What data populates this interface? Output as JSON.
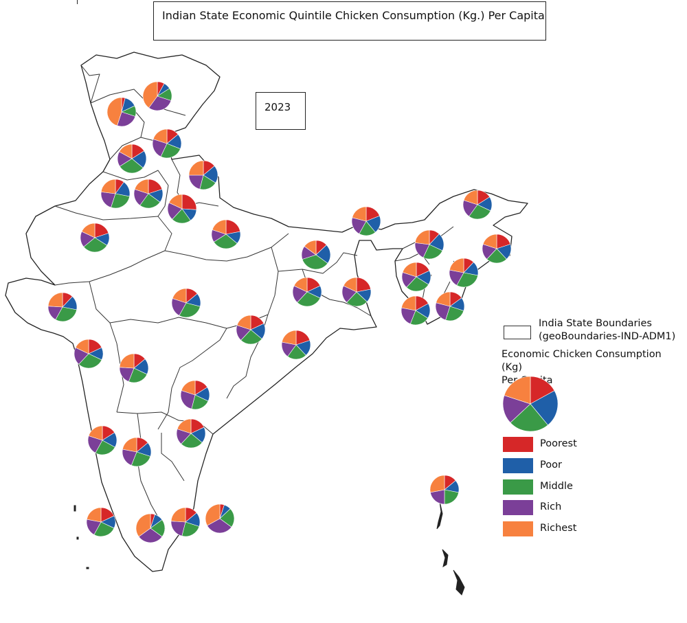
{
  "title": "Indian State Economic Quintile Chicken Consumption (Kg.) Per Capita",
  "year": "2023",
  "legend": {
    "boundary_label_line1": "India State Boundaries",
    "boundary_label_line2": "(geoBoundaries-IND-ADM1)",
    "size_title_line1": "Economic Chicken Consumption (Kg)",
    "size_title_line2": "Per Capita",
    "quintiles": [
      {
        "label": "Poorest",
        "color": "#d62728"
      },
      {
        "label": "Poor",
        "color": "#1f5fa8"
      },
      {
        "label": "Middle",
        "color": "#3a9a47"
      },
      {
        "label": "Rich",
        "color": "#7b3f98"
      },
      {
        "label": "Richest",
        "color": "#f7813f"
      }
    ]
  },
  "legend_pie_shares": [
    0.17,
    0.22,
    0.24,
    0.17,
    0.2
  ],
  "state_pies": [
    {
      "shares": [
        0.08,
        0.08,
        0.14,
        0.3,
        0.4
      ]
    },
    {
      "shares": [
        0.04,
        0.14,
        0.12,
        0.25,
        0.45
      ]
    },
    {
      "shares": [
        0.14,
        0.17,
        0.26,
        0.23,
        0.2
      ]
    },
    {
      "shares": [
        0.16,
        0.2,
        0.3,
        0.17,
        0.17
      ]
    },
    {
      "shares": [
        0.14,
        0.2,
        0.2,
        0.21,
        0.25
      ]
    },
    {
      "shares": [
        0.1,
        0.18,
        0.27,
        0.22,
        0.23
      ]
    },
    {
      "shares": [
        0.2,
        0.15,
        0.25,
        0.2,
        0.2
      ]
    },
    {
      "shares": [
        0.26,
        0.14,
        0.22,
        0.2,
        0.18
      ]
    },
    {
      "shares": [
        0.2,
        0.14,
        0.3,
        0.18,
        0.18
      ]
    },
    {
      "shares": [
        0.22,
        0.14,
        0.3,
        0.14,
        0.2
      ]
    },
    {
      "shares": [
        0.19,
        0.2,
        0.19,
        0.21,
        0.21
      ]
    },
    {
      "shares": [
        0.13,
        0.22,
        0.35,
        0.15,
        0.15
      ]
    },
    {
      "shares": [
        0.12,
        0.2,
        0.25,
        0.2,
        0.23
      ]
    },
    {
      "shares": [
        0.16,
        0.16,
        0.28,
        0.2,
        0.2
      ]
    },
    {
      "shares": [
        0.2,
        0.18,
        0.24,
        0.18,
        0.2
      ]
    },
    {
      "shares": [
        0.18,
        0.14,
        0.3,
        0.2,
        0.18
      ]
    },
    {
      "shares": [
        0.22,
        0.15,
        0.25,
        0.2,
        0.18
      ]
    },
    {
      "shares": [
        0.18,
        0.16,
        0.28,
        0.18,
        0.2
      ]
    },
    {
      "shares": [
        0.12,
        0.16,
        0.3,
        0.2,
        0.22
      ]
    },
    {
      "shares": [
        0.17,
        0.17,
        0.22,
        0.22,
        0.22
      ]
    },
    {
      "shares": [
        0.15,
        0.15,
        0.25,
        0.24,
        0.21
      ]
    },
    {
      "shares": [
        0.12,
        0.16,
        0.3,
        0.18,
        0.24
      ]
    },
    {
      "shares": [
        0.14,
        0.15,
        0.29,
        0.22,
        0.2
      ]
    },
    {
      "shares": [
        0.18,
        0.18,
        0.26,
        0.18,
        0.2
      ]
    },
    {
      "shares": [
        0.2,
        0.18,
        0.22,
        0.18,
        0.22
      ]
    },
    {
      "shares": [
        0.18,
        0.14,
        0.3,
        0.2,
        0.18
      ]
    },
    {
      "shares": [
        0.14,
        0.18,
        0.24,
        0.2,
        0.24
      ]
    },
    {
      "shares": [
        0.16,
        0.16,
        0.22,
        0.26,
        0.2
      ]
    },
    {
      "shares": [
        0.18,
        0.18,
        0.26,
        0.18,
        0.2
      ]
    },
    {
      "shares": [
        0.16,
        0.17,
        0.25,
        0.22,
        0.2
      ]
    },
    {
      "shares": [
        0.14,
        0.16,
        0.26,
        0.22,
        0.22
      ]
    },
    {
      "shares": [
        0.18,
        0.14,
        0.26,
        0.2,
        0.22
      ]
    },
    {
      "shares": [
        0.05,
        0.1,
        0.2,
        0.3,
        0.35
      ]
    },
    {
      "shares": [
        0.14,
        0.16,
        0.24,
        0.22,
        0.24
      ]
    },
    {
      "shares": [
        0.05,
        0.08,
        0.22,
        0.32,
        0.33
      ]
    },
    {
      "shares": [
        0.14,
        0.14,
        0.22,
        0.22,
        0.28
      ]
    },
    {
      "shares": [
        0.18,
        0.16,
        0.24,
        0.22,
        0.2
      ]
    },
    {
      "shares": [
        0.06,
        0.08,
        0.3,
        0.26,
        0.3
      ]
    },
    {
      "shares": [
        0.16,
        0.18,
        0.24,
        0.22,
        0.2
      ]
    }
  ]
}
